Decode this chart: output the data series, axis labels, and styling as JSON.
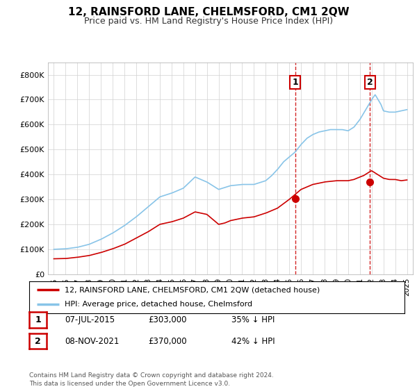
{
  "title": "12, RAINSFORD LANE, CHELMSFORD, CM1 2QW",
  "subtitle": "Price paid vs. HM Land Registry's House Price Index (HPI)",
  "ylim": [
    0,
    850000
  ],
  "yticks": [
    0,
    100000,
    200000,
    300000,
    400000,
    500000,
    600000,
    700000,
    800000
  ],
  "ytick_labels": [
    "£0",
    "£100K",
    "£200K",
    "£300K",
    "£400K",
    "£500K",
    "£600K",
    "£700K",
    "£800K"
  ],
  "hpi_color": "#88c4e8",
  "price_color": "#cc0000",
  "marker_color": "#cc0000",
  "dashed_color": "#cc0000",
  "transaction1_year": 2015.52,
  "transaction1_price": 303000,
  "transaction2_year": 2021.85,
  "transaction2_price": 370000,
  "legend_label_red": "12, RAINSFORD LANE, CHELMSFORD, CM1 2QW (detached house)",
  "legend_label_blue": "HPI: Average price, detached house, Chelmsford",
  "table_rows": [
    {
      "num": "1",
      "date": "07-JUL-2015",
      "price": "£303,000",
      "hpi": "35% ↓ HPI"
    },
    {
      "num": "2",
      "date": "08-NOV-2021",
      "price": "£370,000",
      "hpi": "42% ↓ HPI"
    }
  ],
  "footnote": "Contains HM Land Registry data © Crown copyright and database right 2024.\nThis data is licensed under the Open Government Licence v3.0.",
  "background_color": "#ffffff",
  "grid_color": "#d0d0d0",
  "hpi_keypoints_x": [
    1995,
    1996,
    1997,
    1998,
    1999,
    2000,
    2001,
    2002,
    2003,
    2004,
    2005,
    2006,
    2007,
    2008,
    2009,
    2010,
    2011,
    2012,
    2013,
    2013.5,
    2014,
    2014.5,
    2015,
    2015.5,
    2016,
    2016.5,
    2017,
    2017.5,
    2018,
    2018.5,
    2019,
    2019.5,
    2020,
    2020.5,
    2021,
    2021.5,
    2022,
    2022.3,
    2022.8,
    2023,
    2023.5,
    2024,
    2024.5,
    2025
  ],
  "hpi_keypoints_y": [
    100000,
    102000,
    108000,
    120000,
    140000,
    165000,
    195000,
    230000,
    270000,
    310000,
    325000,
    345000,
    390000,
    370000,
    340000,
    355000,
    360000,
    360000,
    375000,
    395000,
    420000,
    450000,
    470000,
    490000,
    520000,
    545000,
    560000,
    570000,
    575000,
    580000,
    580000,
    580000,
    575000,
    590000,
    620000,
    660000,
    700000,
    720000,
    680000,
    655000,
    650000,
    650000,
    655000,
    660000
  ],
  "price_keypoints_x": [
    1995,
    1996,
    1997,
    1998,
    1999,
    2000,
    2001,
    2002,
    2003,
    2004,
    2005,
    2006,
    2007,
    2008,
    2008.5,
    2009,
    2009.5,
    2010,
    2011,
    2012,
    2013,
    2014,
    2015,
    2015.5,
    2016,
    2017,
    2018,
    2019,
    2020,
    2020.5,
    2021,
    2021.3,
    2021.8,
    2022,
    2022.5,
    2023,
    2023.5,
    2024,
    2024.5,
    2025
  ],
  "price_keypoints_y": [
    62000,
    63000,
    68000,
    75000,
    87000,
    102000,
    120000,
    145000,
    170000,
    200000,
    210000,
    225000,
    250000,
    240000,
    220000,
    200000,
    205000,
    215000,
    225000,
    230000,
    245000,
    265000,
    300000,
    320000,
    340000,
    360000,
    370000,
    375000,
    375000,
    380000,
    390000,
    395000,
    410000,
    415000,
    400000,
    385000,
    380000,
    380000,
    375000,
    378000
  ]
}
